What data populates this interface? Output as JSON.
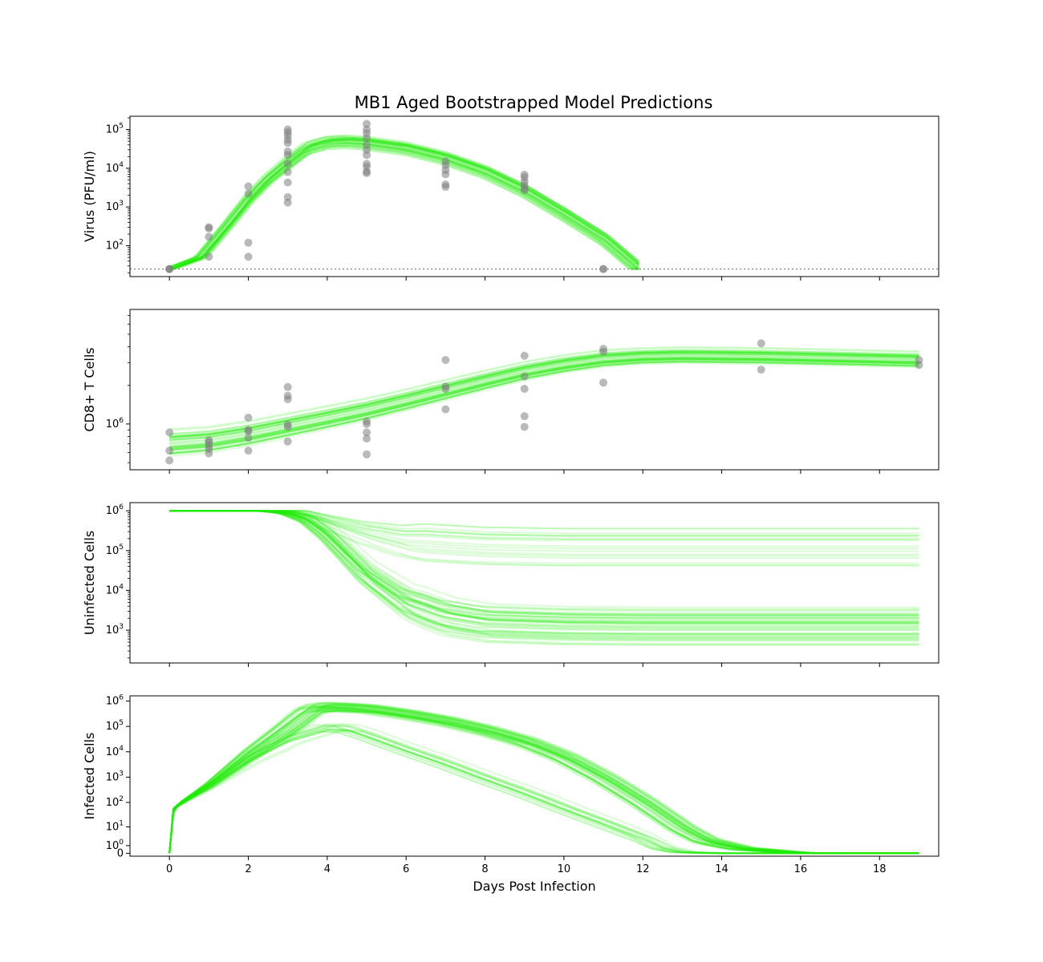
{
  "figure": {
    "title": "MB1 Aged Bootstrapped Model Predictions",
    "xlabel": "Days Post Infection",
    "xlim": [
      -1,
      19.5
    ],
    "xticks": [
      0,
      2,
      4,
      6,
      8,
      10,
      12,
      14,
      16,
      18
    ],
    "colors": {
      "model": "#22ee05",
      "data": "#808080",
      "limit": "#808080"
    }
  },
  "chart_data": [
    {
      "type": "line",
      "panel": "virus",
      "ylabel": "Virus (PFU/ml)",
      "yscale": "log",
      "ylim": [
        16,
        220000
      ],
      "yticks": [
        {
          "v": 100,
          "b": "10",
          "e": "2"
        },
        {
          "v": 1000,
          "b": "10",
          "e": "3"
        },
        {
          "v": 10000,
          "b": "10",
          "e": "4"
        },
        {
          "v": 100000,
          "b": "10",
          "e": "5"
        }
      ],
      "detection_limit": 25,
      "scatter": [
        [
          0,
          25
        ],
        [
          0,
          25
        ],
        [
          0,
          25
        ],
        [
          1,
          52
        ],
        [
          1,
          170
        ],
        [
          1,
          280
        ],
        [
          1,
          300
        ],
        [
          2,
          52
        ],
        [
          2,
          120
        ],
        [
          2,
          2200
        ],
        [
          2,
          3400
        ],
        [
          3,
          1300
        ],
        [
          3,
          1800
        ],
        [
          3,
          4300
        ],
        [
          3,
          8000
        ],
        [
          3,
          13000
        ],
        [
          3,
          22000
        ],
        [
          3,
          27000
        ],
        [
          3,
          45000
        ],
        [
          3,
          55000
        ],
        [
          3,
          70000
        ],
        [
          3,
          85000
        ],
        [
          3,
          100000
        ],
        [
          5,
          7500
        ],
        [
          5,
          8200
        ],
        [
          5,
          11000
        ],
        [
          5,
          13000
        ],
        [
          5,
          22000
        ],
        [
          5,
          30000
        ],
        [
          5,
          40000
        ],
        [
          5,
          60000
        ],
        [
          5,
          80000
        ],
        [
          5,
          100000
        ],
        [
          5,
          140000
        ],
        [
          7,
          3300
        ],
        [
          7,
          3800
        ],
        [
          7,
          7000
        ],
        [
          7,
          9000
        ],
        [
          7,
          12000
        ],
        [
          7,
          15000
        ],
        [
          9,
          2700
        ],
        [
          9,
          3000
        ],
        [
          9,
          3600
        ],
        [
          9,
          4500
        ],
        [
          9,
          5800
        ],
        [
          9,
          6800
        ],
        [
          11,
          25
        ],
        [
          11,
          25
        ]
      ],
      "model_median": [
        [
          0,
          25
        ],
        [
          0.8,
          50
        ],
        [
          1.5,
          350
        ],
        [
          2,
          1500
        ],
        [
          2.5,
          5000
        ],
        [
          3,
          13000
        ],
        [
          3.5,
          32000
        ],
        [
          4,
          45000
        ],
        [
          4.5,
          48000
        ],
        [
          5,
          44000
        ],
        [
          6,
          32000
        ],
        [
          7,
          18000
        ],
        [
          8,
          8000
        ],
        [
          9,
          2600
        ],
        [
          10,
          650
        ],
        [
          11,
          150
        ],
        [
          11.9,
          25
        ]
      ]
    },
    {
      "type": "line",
      "panel": "cd8",
      "ylabel": "CD8+ T Cells",
      "yscale": "log",
      "ylim": [
        440000,
        7800000
      ],
      "yticks": [
        {
          "v": 1000000,
          "b": "10",
          "e": "6"
        }
      ],
      "minor_yticks": [
        500000,
        600000,
        700000,
        800000,
        900000,
        2000000,
        3000000,
        4000000,
        5000000,
        6000000,
        7000000
      ],
      "scatter": [
        [
          0,
          520000
        ],
        [
          0,
          620000
        ],
        [
          0,
          860000
        ],
        [
          1,
          590000
        ],
        [
          1,
          640000
        ],
        [
          1,
          680000
        ],
        [
          1,
          720000
        ],
        [
          1,
          750000
        ],
        [
          2,
          620000
        ],
        [
          2,
          780000
        ],
        [
          2,
          880000
        ],
        [
          2,
          900000
        ],
        [
          2,
          1120000
        ],
        [
          3,
          730000
        ],
        [
          3,
          950000
        ],
        [
          3,
          990000
        ],
        [
          3,
          1560000
        ],
        [
          3,
          1660000
        ],
        [
          3,
          1940000
        ],
        [
          5,
          580000
        ],
        [
          5,
          770000
        ],
        [
          5,
          860000
        ],
        [
          5,
          1000000
        ],
        [
          5,
          1050000
        ],
        [
          7,
          1300000
        ],
        [
          7,
          1880000
        ],
        [
          7,
          1960000
        ],
        [
          7,
          3150000
        ],
        [
          9,
          950000
        ],
        [
          9,
          1150000
        ],
        [
          9,
          1880000
        ],
        [
          9,
          2350000
        ],
        [
          9,
          3400000
        ],
        [
          11,
          2100000
        ],
        [
          11,
          3650000
        ],
        [
          11,
          3850000
        ],
        [
          15,
          2650000
        ],
        [
          15,
          4250000
        ],
        [
          19,
          2880000
        ],
        [
          19,
          3150000
        ]
      ],
      "model_median": [
        [
          0,
          720000
        ],
        [
          1,
          760000
        ],
        [
          2,
          850000
        ],
        [
          3,
          980000
        ],
        [
          4,
          1130000
        ],
        [
          5,
          1310000
        ],
        [
          6,
          1550000
        ],
        [
          7,
          1850000
        ],
        [
          8,
          2200000
        ],
        [
          9,
          2600000
        ],
        [
          10,
          2950000
        ],
        [
          11,
          3250000
        ],
        [
          12,
          3400000
        ],
        [
          13,
          3450000
        ],
        [
          15,
          3400000
        ],
        [
          17,
          3300000
        ],
        [
          19,
          3200000
        ]
      ]
    },
    {
      "type": "line",
      "panel": "uninfected",
      "ylabel": "Uninfected Cells",
      "yscale": "log",
      "ylim": [
        150,
        1600000
      ],
      "yticks": [
        {
          "v": 1000,
          "b": "10",
          "e": "3"
        },
        {
          "v": 10000,
          "b": "10",
          "e": "4"
        },
        {
          "v": 100000,
          "b": "10",
          "e": "5"
        },
        {
          "v": 1000000,
          "b": "10",
          "e": "6"
        }
      ],
      "model_median": [
        [
          0,
          1000000
        ],
        [
          2,
          1000000
        ],
        [
          2.5,
          980000
        ],
        [
          3,
          880000
        ],
        [
          3.5,
          600000
        ],
        [
          4,
          250000
        ],
        [
          4.5,
          80000
        ],
        [
          5,
          25000
        ],
        [
          6,
          5000
        ],
        [
          7,
          2200
        ],
        [
          8,
          1500
        ],
        [
          10,
          1300
        ],
        [
          12,
          1250
        ],
        [
          19,
          1250
        ]
      ],
      "alt_branch_median": [
        [
          0,
          1000000
        ],
        [
          2.5,
          990000
        ],
        [
          3,
          950000
        ],
        [
          3.5,
          820000
        ],
        [
          4,
          560000
        ],
        [
          5,
          280000
        ],
        [
          6,
          170000
        ],
        [
          8,
          130000
        ],
        [
          10,
          120000
        ],
        [
          19,
          120000
        ]
      ]
    },
    {
      "type": "line",
      "panel": "infected",
      "ylabel": "Infected Cells",
      "yscale": "symlog",
      "ylim": [
        -0.3,
        1600000
      ],
      "yticks": [
        {
          "v": 0,
          "b": "0",
          "e": ""
        },
        {
          "v": 1,
          "b": "10",
          "e": "0"
        },
        {
          "v": 10,
          "b": "10",
          "e": "1"
        },
        {
          "v": 100,
          "b": "10",
          "e": "2"
        },
        {
          "v": 1000,
          "b": "10",
          "e": "3"
        },
        {
          "v": 10000,
          "b": "10",
          "e": "4"
        },
        {
          "v": 100000,
          "b": "10",
          "e": "5"
        },
        {
          "v": 1000000,
          "b": "10",
          "e": "6"
        }
      ],
      "model_median": [
        [
          0,
          0
        ],
        [
          0.05,
          15
        ],
        [
          0.1,
          55
        ],
        [
          0.3,
          100
        ],
        [
          1,
          500
        ],
        [
          2,
          8000
        ],
        [
          3,
          100000
        ],
        [
          3.6,
          500000
        ],
        [
          4,
          600000
        ],
        [
          5,
          500000
        ],
        [
          6,
          300000
        ],
        [
          7,
          160000
        ],
        [
          8,
          70000
        ],
        [
          9,
          25000
        ],
        [
          10,
          6000
        ],
        [
          11,
          900
        ],
        [
          12,
          100
        ],
        [
          13,
          8
        ],
        [
          13.6,
          2
        ],
        [
          14.5,
          0.5
        ],
        [
          16,
          0.02
        ],
        [
          17,
          0
        ],
        [
          19,
          0
        ]
      ],
      "alt_branch_median": [
        [
          0,
          0
        ],
        [
          0.1,
          55
        ],
        [
          1,
          450
        ],
        [
          2,
          5000
        ],
        [
          3,
          30000
        ],
        [
          4,
          85000
        ],
        [
          4.5,
          80000
        ],
        [
          5,
          45000
        ],
        [
          6,
          12000
        ],
        [
          7,
          3500
        ],
        [
          8,
          900
        ],
        [
          9,
          250
        ],
        [
          10,
          60
        ],
        [
          11,
          15
        ],
        [
          12,
          3
        ],
        [
          12.5,
          0.6
        ],
        [
          13,
          0.1
        ],
        [
          14,
          0
        ],
        [
          19,
          0
        ]
      ]
    }
  ]
}
